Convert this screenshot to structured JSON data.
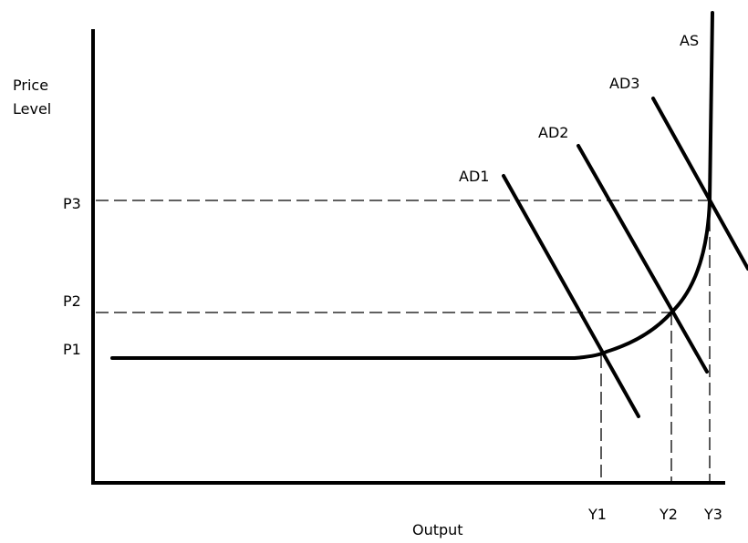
{
  "diagram": {
    "y_axis_label_line1": "Price",
    "y_axis_label_line2": "Level",
    "x_axis_label": "Output",
    "price_levels": [
      "P1",
      "P2",
      "P3"
    ],
    "output_levels": [
      "Y1",
      "Y2",
      "Y3"
    ],
    "curves": {
      "aggregate_supply": "AS",
      "aggregate_demand": [
        "AD1",
        "AD2",
        "AD3"
      ]
    },
    "colors": {
      "line": "#000000",
      "background": "#ffffff"
    }
  }
}
